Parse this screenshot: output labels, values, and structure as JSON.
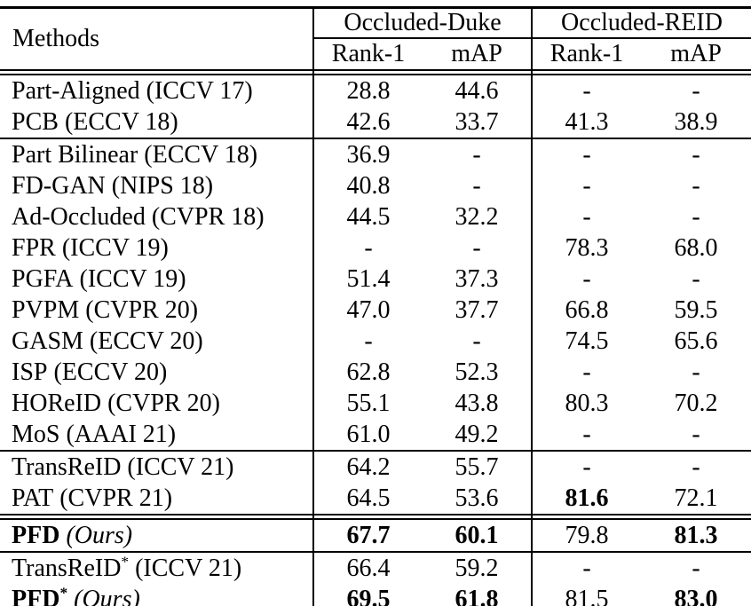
{
  "table": {
    "methods_header": "Methods",
    "groups": {
      "duke": "Occluded-Duke",
      "reid": "Occluded-REID"
    },
    "sub": {
      "rank1": "Rank-1",
      "map": "mAP"
    },
    "colors": {
      "text": "#000000",
      "background": "#ffffff",
      "rule": "#000000"
    },
    "rows": [
      {
        "method": {
          "prefix": "Part-Aligned",
          "sup": "",
          "suffix": " (ICCV 17)"
        },
        "duke_rank1": "28.8",
        "duke_map": "44.6",
        "reid_rank1": "-",
        "reid_map": "-"
      },
      {
        "method": {
          "prefix": "PCB",
          "sup": "",
          "suffix": " (ECCV 18)"
        },
        "duke_rank1": "42.6",
        "duke_map": "33.7",
        "reid_rank1": "41.3",
        "reid_map": "38.9"
      },
      {
        "method": {
          "prefix": "Part Bilinear",
          "sup": "",
          "suffix": " (ECCV 18)"
        },
        "duke_rank1": "36.9",
        "duke_map": "-",
        "reid_rank1": "-",
        "reid_map": "-"
      },
      {
        "method": {
          "prefix": "FD-GAN",
          "sup": "",
          "suffix": " (NIPS 18)"
        },
        "duke_rank1": "40.8",
        "duke_map": "-",
        "reid_rank1": "-",
        "reid_map": "-"
      },
      {
        "method": {
          "prefix": "Ad-Occluded",
          "sup": "",
          "suffix": " (CVPR 18)"
        },
        "duke_rank1": "44.5",
        "duke_map": "32.2",
        "reid_rank1": "-",
        "reid_map": "-"
      },
      {
        "method": {
          "prefix": "FPR",
          "sup": "",
          "suffix": " (ICCV 19)"
        },
        "duke_rank1": "-",
        "duke_map": "-",
        "reid_rank1": "78.3",
        "reid_map": "68.0"
      },
      {
        "method": {
          "prefix": "PGFA",
          "sup": "",
          "suffix": " (ICCV 19)"
        },
        "duke_rank1": "51.4",
        "duke_map": "37.3",
        "reid_rank1": "-",
        "reid_map": "-"
      },
      {
        "method": {
          "prefix": "PVPM",
          "sup": "",
          "suffix": " (CVPR 20)"
        },
        "duke_rank1": "47.0",
        "duke_map": "37.7",
        "reid_rank1": "66.8",
        "reid_map": "59.5"
      },
      {
        "method": {
          "prefix": "GASM",
          "sup": "",
          "suffix": " (ECCV 20)"
        },
        "duke_rank1": "-",
        "duke_map": "-",
        "reid_rank1": "74.5",
        "reid_map": "65.6"
      },
      {
        "method": {
          "prefix": "ISP",
          "sup": "",
          "suffix": " (ECCV 20)"
        },
        "duke_rank1": "62.8",
        "duke_map": "52.3",
        "reid_rank1": "-",
        "reid_map": "-"
      },
      {
        "method": {
          "prefix": "HOReID",
          "sup": "",
          "suffix": " (CVPR 20)"
        },
        "duke_rank1": "55.1",
        "duke_map": "43.8",
        "reid_rank1": "80.3",
        "reid_map": "70.2"
      },
      {
        "method": {
          "prefix": "MoS",
          "sup": "",
          "suffix": " (AAAI 21)"
        },
        "duke_rank1": "61.0",
        "duke_map": "49.2",
        "reid_rank1": "-",
        "reid_map": "-"
      },
      {
        "method": {
          "prefix": "TransReID",
          "sup": "",
          "suffix": " (ICCV 21)"
        },
        "duke_rank1": "64.2",
        "duke_map": "55.7",
        "reid_rank1": "-",
        "reid_map": "-"
      },
      {
        "method": {
          "prefix": "PAT",
          "sup": "",
          "suffix": " (CVPR 21)"
        },
        "duke_rank1": "64.5",
        "duke_map": "53.6",
        "reid_rank1": "81.6",
        "reid_map": "72.1",
        "bold": [
          "reid_rank1"
        ]
      },
      {
        "method": {
          "prefix": "PFD",
          "sup": "",
          "suffix": " (Ours)",
          "bold": true,
          "italic_suffix": true
        },
        "duke_rank1": "67.7",
        "duke_map": "60.1",
        "reid_rank1": "79.8",
        "reid_map": "81.3",
        "bold": [
          "duke_rank1",
          "duke_map",
          "reid_map"
        ]
      },
      {
        "method": {
          "prefix": "TransReID",
          "sup": "*",
          "suffix": " (ICCV 21)"
        },
        "duke_rank1": "66.4",
        "duke_map": "59.2",
        "reid_rank1": "-",
        "reid_map": "-"
      },
      {
        "method": {
          "prefix": "PFD",
          "sup": "*",
          "suffix": " (Ours)",
          "bold": true,
          "italic_suffix": true
        },
        "duke_rank1": "69.5",
        "duke_map": "61.8",
        "reid_rank1": "81.5",
        "reid_map": "83.0",
        "bold": [
          "duke_rank1",
          "duke_map",
          "reid_map"
        ]
      }
    ]
  }
}
